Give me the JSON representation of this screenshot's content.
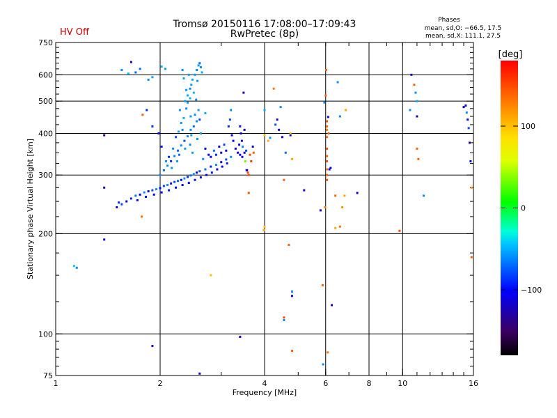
{
  "header": {
    "status": "HV Off",
    "status_color": "#cc0000",
    "title_line1": "Tromsø 20150116 17:08:00–17:09:43",
    "title_line2": "RwPretec (8p)",
    "stats_title": "Phases",
    "stats_line1": "mean, sd,O: −66.5, 17.5",
    "stats_line2": "mean, sd,X: 111.1, 27.5"
  },
  "chart_data": {
    "type": "scatter",
    "title": "Tromsø 20150116 17:08:00–17:09:43",
    "subtitle": "RwPretec (8p)",
    "xlabel": "Frequency [MHz]",
    "ylabel": "Stationary phase Virtual Height [km]",
    "xscale": "log",
    "yscale": "log",
    "xlim": [
      1,
      16
    ],
    "ylim": [
      75,
      750
    ],
    "x_ticks": [
      1,
      2,
      4,
      6,
      8,
      10,
      16
    ],
    "x_ticklabels": [
      "1",
      "2",
      "4",
      "6",
      "8",
      "10",
      "16"
    ],
    "y_ticks": [
      75,
      100,
      200,
      300,
      400,
      500,
      600,
      750
    ],
    "y_ticklabels": [
      "75",
      "100",
      "200",
      "300",
      "400",
      "500",
      "600",
      "750"
    ],
    "grid_x": [
      2,
      4,
      6,
      8,
      10
    ],
    "grid_y": [
      100,
      200,
      300,
      400,
      500,
      600
    ],
    "grid": true,
    "colorbar": {
      "label": "[deg]",
      "range": [
        -180,
        180
      ],
      "ticks": [
        100,
        0,
        -100
      ],
      "ticklabels": [
        "100",
        "0",
        "−100"
      ]
    },
    "points": [
      [
        1.65,
        655,
        -120
      ],
      [
        1.55,
        620,
        -60
      ],
      [
        1.62,
        605,
        -45
      ],
      [
        1.7,
        610,
        -70
      ],
      [
        1.75,
        625,
        -70
      ],
      [
        1.85,
        580,
        -60
      ],
      [
        1.9,
        590,
        -55
      ],
      [
        2.02,
        635,
        -50
      ],
      [
        2.07,
        625,
        -55
      ],
      [
        1.83,
        470,
        -90
      ],
      [
        1.9,
        420,
        -90
      ],
      [
        1.98,
        400,
        -100
      ],
      [
        2.02,
        365,
        -95
      ],
      [
        1.78,
        455,
        140
      ],
      [
        1.77,
        225,
        135
      ],
      [
        1.38,
        395,
        -150
      ],
      [
        1.38,
        275,
        -120
      ],
      [
        1.38,
        192,
        -110
      ],
      [
        1.13,
        160,
        -40
      ],
      [
        1.15,
        158,
        -60
      ],
      [
        1.5,
        240,
        -110
      ],
      [
        1.52,
        248,
        -90
      ],
      [
        1.55,
        245,
        -80
      ],
      [
        1.6,
        250,
        -110
      ],
      [
        1.65,
        255,
        -90
      ],
      [
        1.7,
        260,
        -70
      ],
      [
        1.75,
        262,
        -100
      ],
      [
        1.8,
        266,
        -60
      ],
      [
        1.85,
        268,
        -110
      ],
      [
        1.9,
        270,
        -80
      ],
      [
        1.95,
        272,
        -60
      ],
      [
        2.0,
        274,
        -100
      ],
      [
        2.05,
        278,
        -80
      ],
      [
        2.1,
        280,
        -60
      ],
      [
        2.15,
        283,
        -110
      ],
      [
        2.2,
        286,
        -80
      ],
      [
        2.25,
        288,
        -70
      ],
      [
        2.3,
        290,
        -100
      ],
      [
        2.35,
        293,
        -60
      ],
      [
        2.4,
        296,
        -90
      ],
      [
        2.45,
        299,
        -70
      ],
      [
        2.5,
        302,
        -60
      ],
      [
        2.55,
        305,
        -110
      ],
      [
        2.6,
        308,
        -80
      ],
      [
        2.7,
        312,
        -70
      ],
      [
        2.8,
        318,
        -90
      ],
      [
        2.9,
        322,
        -60
      ],
      [
        3.0,
        328,
        -110
      ],
      [
        3.1,
        334,
        -80
      ],
      [
        3.2,
        340,
        -60
      ],
      [
        1.72,
        252,
        -110
      ],
      [
        1.82,
        258,
        -100
      ],
      [
        1.92,
        262,
        -100
      ],
      [
        2.02,
        266,
        -100
      ],
      [
        2.12,
        270,
        -95
      ],
      [
        2.22,
        275,
        -100
      ],
      [
        2.32,
        280,
        -105
      ],
      [
        2.42,
        284,
        -100
      ],
      [
        2.52,
        290,
        -95
      ],
      [
        2.62,
        295,
        -105
      ],
      [
        2.72,
        300,
        -100
      ],
      [
        2.82,
        305,
        -95
      ],
      [
        2.92,
        312,
        -110
      ],
      [
        3.02,
        318,
        -100
      ],
      [
        3.12,
        325,
        -95
      ],
      [
        2.0,
        300,
        -60
      ],
      [
        2.05,
        310,
        -70
      ],
      [
        2.1,
        320,
        -60
      ],
      [
        2.15,
        330,
        -90
      ],
      [
        2.2,
        342,
        -60
      ],
      [
        2.25,
        355,
        -70
      ],
      [
        2.3,
        368,
        -60
      ],
      [
        2.35,
        380,
        -80
      ],
      [
        2.4,
        392,
        -60
      ],
      [
        2.45,
        410,
        -60
      ],
      [
        2.5,
        420,
        -70
      ],
      [
        2.55,
        435,
        -60
      ],
      [
        2.6,
        440,
        -80
      ],
      [
        2.45,
        450,
        -55
      ],
      [
        2.38,
        475,
        -60
      ],
      [
        2.36,
        500,
        -55
      ],
      [
        2.4,
        520,
        -50
      ],
      [
        2.44,
        545,
        -60
      ],
      [
        2.46,
        560,
        -55
      ],
      [
        2.48,
        580,
        -50
      ],
      [
        2.52,
        600,
        -55
      ],
      [
        2.55,
        620,
        -60
      ],
      [
        2.58,
        640,
        -55
      ],
      [
        2.6,
        650,
        -70
      ],
      [
        2.62,
        632,
        -60
      ],
      [
        2.64,
        610,
        -50
      ],
      [
        2.38,
        540,
        -60
      ],
      [
        2.34,
        585,
        -55
      ],
      [
        2.32,
        620,
        -60
      ],
      [
        2.42,
        600,
        -55
      ],
      [
        2.56,
        575,
        -55
      ],
      [
        2.5,
        530,
        -50
      ],
      [
        2.54,
        505,
        -60
      ],
      [
        2.28,
        470,
        -60
      ],
      [
        2.3,
        430,
        -55
      ],
      [
        2.32,
        410,
        -60
      ],
      [
        2.46,
        395,
        -55
      ],
      [
        2.56,
        385,
        -60
      ],
      [
        2.22,
        390,
        -80
      ],
      [
        2.18,
        360,
        -60
      ],
      [
        2.27,
        345,
        -70
      ],
      [
        2.36,
        360,
        -55
      ],
      [
        2.44,
        370,
        -60
      ],
      [
        2.62,
        400,
        -55
      ],
      [
        2.58,
        470,
        -55
      ],
      [
        2.52,
        455,
        -60
      ],
      [
        2.4,
        495,
        -55
      ],
      [
        2.44,
        510,
        -50
      ],
      [
        2.34,
        445,
        -50
      ],
      [
        2.26,
        405,
        -55
      ],
      [
        2.12,
        340,
        -90
      ],
      [
        2.08,
        330,
        -60
      ],
      [
        2.16,
        315,
        -55
      ],
      [
        2.24,
        330,
        -55
      ],
      [
        2.48,
        350,
        -55
      ],
      [
        2.66,
        335,
        -60
      ],
      [
        2.76,
        345,
        -100
      ],
      [
        2.86,
        355,
        -70
      ],
      [
        2.96,
        365,
        -110
      ],
      [
        3.06,
        370,
        -80
      ],
      [
        2.7,
        360,
        -100
      ],
      [
        2.8,
        340,
        -110
      ],
      [
        2.9,
        345,
        -90
      ],
      [
        3.0,
        350,
        -120
      ],
      [
        3.1,
        355,
        -110
      ],
      [
        3.15,
        420,
        -90
      ],
      [
        3.18,
        440,
        -80
      ],
      [
        3.2,
        470,
        -60
      ],
      [
        3.22,
        395,
        -110
      ],
      [
        3.25,
        380,
        -100
      ],
      [
        3.3,
        360,
        -120
      ],
      [
        3.35,
        350,
        -110
      ],
      [
        3.4,
        345,
        -100
      ],
      [
        3.45,
        340,
        -110
      ],
      [
        3.5,
        350,
        -120
      ],
      [
        3.4,
        420,
        -100
      ],
      [
        3.42,
        400,
        -110
      ],
      [
        3.44,
        380,
        -120
      ],
      [
        3.38,
        370,
        -100
      ],
      [
        3.46,
        365,
        -60
      ],
      [
        3.52,
        330,
        30
      ],
      [
        3.54,
        355,
        -80
      ],
      [
        3.56,
        310,
        -120
      ],
      [
        3.58,
        305,
        150
      ],
      [
        3.6,
        300,
        150
      ],
      [
        3.63,
        345,
        150
      ],
      [
        3.66,
        330,
        160
      ],
      [
        3.7,
        365,
        -110
      ],
      [
        3.72,
        350,
        140
      ],
      [
        3.48,
        530,
        -120
      ],
      [
        3.5,
        410,
        -120
      ],
      [
        3.55,
        310,
        -100
      ],
      [
        3.6,
        265,
        150
      ],
      [
        4.0,
        210,
        100
      ],
      [
        3.98,
        205,
        110
      ],
      [
        4.0,
        395,
        100
      ],
      [
        4.1,
        380,
        110
      ],
      [
        4.15,
        388,
        -60
      ],
      [
        4.25,
        545,
        130
      ],
      [
        4.3,
        425,
        -80
      ],
      [
        4.35,
        440,
        -120
      ],
      [
        4.4,
        410,
        -100
      ],
      [
        4.45,
        480,
        -60
      ],
      [
        4.5,
        390,
        -110
      ],
      [
        4.6,
        350,
        -70
      ],
      [
        4.55,
        290,
        140
      ],
      [
        4.55,
        110,
        -60
      ],
      [
        4.55,
        112,
        150
      ],
      [
        4.7,
        185,
        140
      ],
      [
        4.75,
        395,
        -110
      ],
      [
        4.75,
        400,
        100
      ],
      [
        4.8,
        335,
        110
      ],
      [
        4.8,
        134,
        -60
      ],
      [
        4.8,
        130,
        -110
      ],
      [
        4.8,
        89,
        140
      ],
      [
        5.2,
        270,
        -110
      ],
      [
        5.8,
        235,
        -120
      ],
      [
        5.88,
        140,
        140
      ],
      [
        5.9,
        81,
        -60
      ],
      [
        5.95,
        495,
        -60
      ],
      [
        5.98,
        240,
        130
      ],
      [
        6.0,
        520,
        140
      ],
      [
        6.02,
        620,
        140
      ],
      [
        6.05,
        435,
        150
      ],
      [
        6.05,
        420,
        140
      ],
      [
        6.05,
        410,
        130
      ],
      [
        6.05,
        390,
        140
      ],
      [
        6.05,
        360,
        150
      ],
      [
        6.05,
        342,
        140
      ],
      [
        6.05,
        330,
        150
      ],
      [
        6.05,
        312,
        130
      ],
      [
        6.05,
        300,
        140
      ],
      [
        6.05,
        290,
        150
      ],
      [
        6.08,
        88,
        130
      ],
      [
        6.1,
        448,
        -110
      ],
      [
        6.12,
        400,
        140
      ],
      [
        6.15,
        312,
        -100
      ],
      [
        6.2,
        315,
        -110
      ],
      [
        6.25,
        122,
        -120
      ],
      [
        6.4,
        260,
        140
      ],
      [
        6.4,
        208,
        110
      ],
      [
        6.5,
        570,
        -60
      ],
      [
        6.6,
        450,
        -60
      ],
      [
        6.6,
        210,
        130
      ],
      [
        6.7,
        240,
        120
      ],
      [
        6.8,
        260,
        110
      ],
      [
        6.85,
        470,
        110
      ],
      [
        7.4,
        265,
        -110
      ],
      [
        9.8,
        204,
        150
      ],
      [
        10.5,
        470,
        -60
      ],
      [
        10.6,
        600,
        -120
      ],
      [
        10.8,
        560,
        140
      ],
      [
        10.9,
        530,
        -60
      ],
      [
        11.0,
        500,
        -50
      ],
      [
        11.0,
        450,
        -120
      ],
      [
        11.0,
        360,
        140
      ],
      [
        11.1,
        335,
        140
      ],
      [
        11.5,
        260,
        -60
      ],
      [
        15.0,
        480,
        -120
      ],
      [
        15.2,
        485,
        -110
      ],
      [
        15.3,
        462,
        -60
      ],
      [
        15.4,
        440,
        -100
      ],
      [
        15.5,
        415,
        -80
      ],
      [
        15.6,
        375,
        -120
      ],
      [
        15.7,
        330,
        -100
      ],
      [
        15.8,
        275,
        120
      ],
      [
        15.8,
        170,
        140
      ],
      [
        1.9,
        92,
        -120
      ],
      [
        2.6,
        76,
        -120
      ],
      [
        3.4,
        98,
        -120
      ],
      [
        2.8,
        150,
        100
      ],
      [
        4.0,
        470,
        -50
      ],
      [
        2.7,
        460,
        -50
      ]
    ]
  }
}
